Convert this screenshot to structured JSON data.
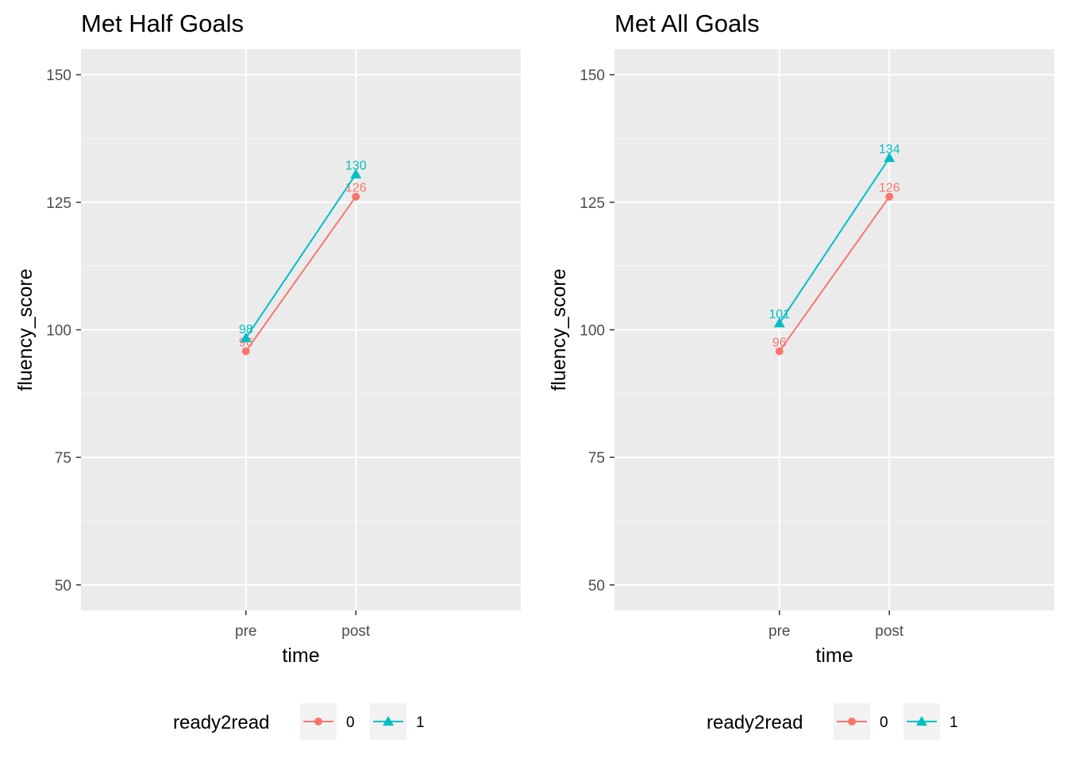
{
  "chart_data": [
    {
      "type": "line",
      "title": "Met Half Goals",
      "xlabel": "time",
      "ylabel": "fluency_score",
      "categories": [
        "pre",
        "post"
      ],
      "ylim": [
        45,
        155
      ],
      "yticks": [
        50,
        75,
        100,
        125,
        150
      ],
      "grid": true,
      "legend": {
        "title": "ready2read",
        "position": "bottom",
        "keys": [
          "0",
          "1"
        ]
      },
      "series": [
        {
          "name": "0",
          "values": [
            95.8,
            126.1
          ],
          "labels": [
            "96",
            "126"
          ],
          "color": "#F8766D",
          "marker": "circle"
        },
        {
          "name": "1",
          "values": [
            98.4,
            130.5
          ],
          "labels": [
            "98",
            "130"
          ],
          "color": "#00BFC4",
          "marker": "triangle"
        }
      ]
    },
    {
      "type": "line",
      "title": "Met All Goals",
      "xlabel": "time",
      "ylabel": "fluency_score",
      "categories": [
        "pre",
        "post"
      ],
      "ylim": [
        45,
        155
      ],
      "yticks": [
        50,
        75,
        100,
        125,
        150
      ],
      "grid": true,
      "legend": {
        "title": "ready2read",
        "position": "bottom",
        "keys": [
          "0",
          "1"
        ]
      },
      "series": [
        {
          "name": "0",
          "values": [
            95.8,
            126.1
          ],
          "labels": [
            "96",
            "126"
          ],
          "color": "#F8766D",
          "marker": "circle"
        },
        {
          "name": "1",
          "values": [
            101.3,
            133.7
          ],
          "labels": [
            "101",
            "134"
          ],
          "color": "#00BFC4",
          "marker": "triangle"
        }
      ]
    }
  ],
  "theme": {
    "panel_bg": "#EBEBEB",
    "grid_major": "#FFFFFF",
    "grid_minor": "#F5F5F5",
    "tick_text": "#4D4D4D"
  }
}
